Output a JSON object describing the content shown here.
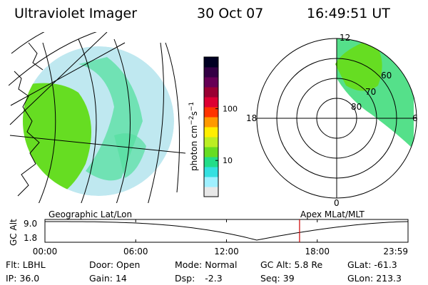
{
  "header": {
    "instrument": "Ultraviolet Imager",
    "date": "30 Oct 07",
    "time": "16:49:51 UT"
  },
  "colorbar": {
    "unit_label": "photon cm",
    "unit_exp1": "−2",
    "unit_s": "s",
    "unit_exp2": "−1",
    "ticks": [
      "100",
      "10"
    ],
    "tick_values": [
      100,
      10
    ],
    "range": [
      2,
      1000
    ],
    "colors": [
      "#e8e8e8",
      "#9ff0ff",
      "#34e0e0",
      "#22dd88",
      "#66dd22",
      "#bbee22",
      "#ffee00",
      "#ff9900",
      "#ff3300",
      "#dd0033",
      "#990033",
      "#660055",
      "#330044",
      "#000022"
    ]
  },
  "geo_view": {
    "caption": "Geographic Lat/Lon",
    "aurora_color": "#55e08a",
    "land_color": "#66dd22"
  },
  "polar_view": {
    "caption": "Apex MLat/MLT",
    "mlt_labels": {
      "top": "12",
      "left": "18",
      "right": "6",
      "bottom": "0"
    },
    "lat_labels": [
      "60",
      "70",
      "80"
    ],
    "lat_values": [
      60,
      70,
      80
    ]
  },
  "altitude_plot": {
    "ylabel": "GC Alt",
    "yticks": [
      "9.0",
      "1.8"
    ],
    "ytick_values": [
      9.0,
      1.8
    ],
    "xticks": [
      "00:00",
      "06:00",
      "12:00",
      "18:00",
      "23:59"
    ],
    "current_hour": 16.83,
    "marker_color": "#cc0000"
  },
  "info": {
    "flt_label": "Flt:",
    "flt_value": "LBHL",
    "ip_label": "IP:",
    "ip_value": "36.0",
    "door_label": "Door:",
    "door_value": "Open",
    "gain_label": "Gain:",
    "gain_value": "14",
    "mode_label": "Mode:",
    "mode_value": "Normal",
    "dsp_label": "Dsp:",
    "dsp_value": "-2.3",
    "gcalt_label": "GC Alt:",
    "gcalt_value": "5.8 Re",
    "seq_label": "Seq:",
    "seq_value": "39",
    "glat_label": "GLat:",
    "glat_value": "-61.3",
    "glon_label": "GLon:",
    "glon_value": "213.3"
  }
}
